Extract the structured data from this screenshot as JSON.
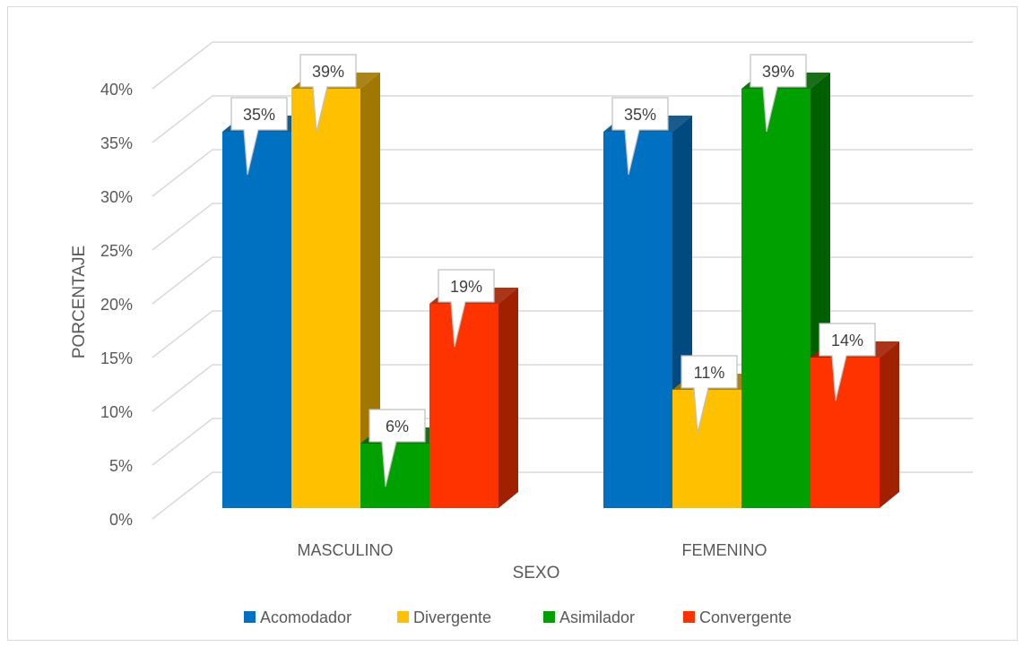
{
  "chart_data": {
    "type": "bar",
    "three_d": true,
    "categories": [
      "MASCULINO",
      "FEMENINO"
    ],
    "series": [
      {
        "name": "Acomodador",
        "values": [
          35,
          35
        ],
        "color": "#0070C0",
        "side_color": "#004A80"
      },
      {
        "name": "Divergente",
        "values": [
          39,
          11
        ],
        "color": "#FFC000",
        "side_color": "#A07800"
      },
      {
        "name": "Asimilador",
        "values": [
          6,
          39
        ],
        "color": "#00A000",
        "side_color": "#006000"
      },
      {
        "name": "Convergente",
        "values": [
          19,
          14
        ],
        "color": "#FF3300",
        "side_color": "#A02000"
      }
    ],
    "value_suffix": "%",
    "xlabel": "SEXO",
    "ylabel": "PORCENTAJE",
    "ylim": [
      0,
      40
    ],
    "ytick_step": 5,
    "yticks": [
      "0%",
      "5%",
      "10%",
      "15%",
      "20%",
      "25%",
      "30%",
      "35%",
      "40%"
    ],
    "grid": true,
    "legend_position": "bottom",
    "title": ""
  }
}
